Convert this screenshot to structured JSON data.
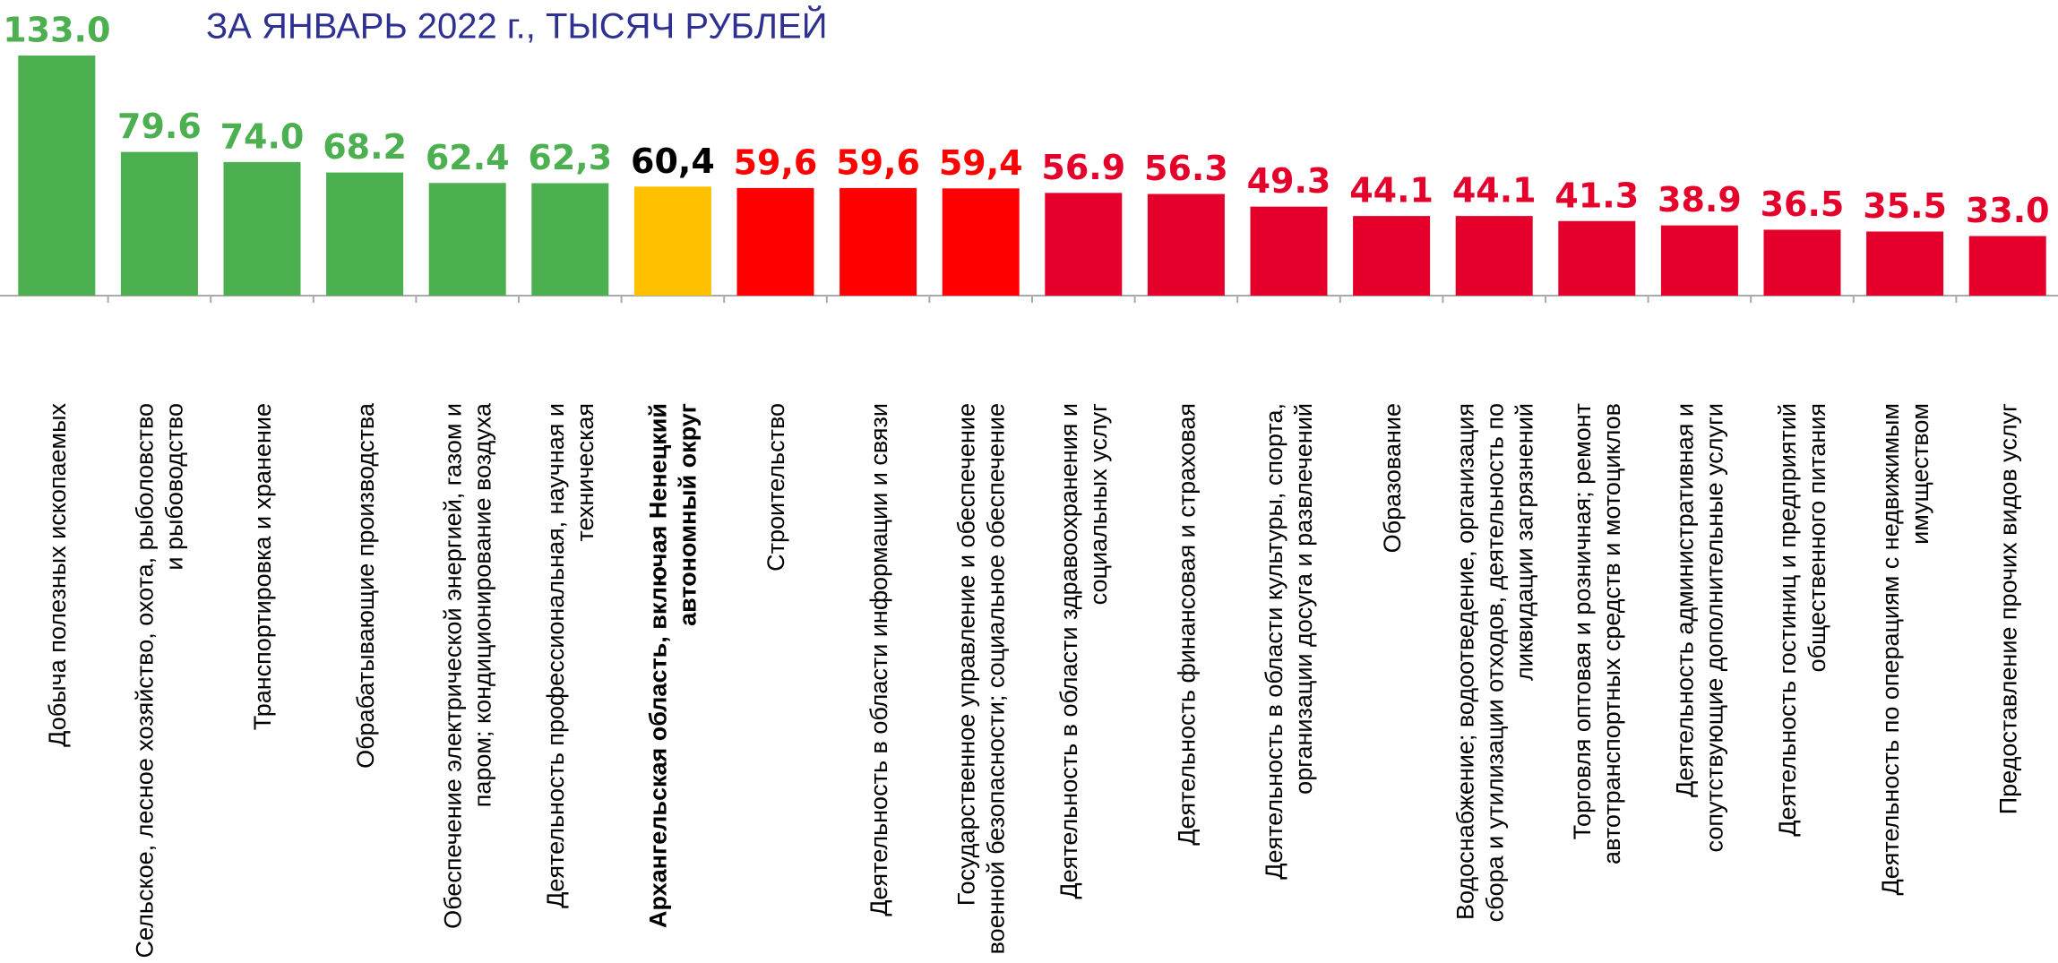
{
  "chart_data": {
    "type": "bar",
    "title": "ЗА ЯНВАРЬ 2022 г., ТЫСЯЧ РУБЛЕЙ",
    "categories": [
      "Добыча полезных ископаемых",
      "Сельское, лесное хозяйство, охота, рыболовство и рыбоводство",
      "Транспортировка и хранение",
      "Обрабатывающие производства",
      "Обеспечение электрической энергией, газом и паром; кондиционирование воздуха",
      "Деятельность профессиональная, научная и техническая",
      "Архангельская область, включая Ненецкий автономный округ",
      "Строительство",
      "Деятельность в области информации и связи",
      "Государственное управление и обеспечение военной безопасности; социальное обеспечение",
      "Деятельность в области здравоохранения и социальных услуг",
      "Деятельность финансовая и страховая",
      "Деятельность в области культуры, спорта, организации досуга и развлечений",
      "Образование",
      "Водоснабжение; водоотведение, организация сбора и утилизации отходов, деятельность по ликвидации загрязнений",
      "Торговля оптовая и розничная; ремонт автотранспортных средств и мотоциклов",
      "Деятельность административная и сопутствующие дополнительные услуги",
      "Деятельность гостиниц и предприятий общественного питания",
      "Деятельность по операциям с недвижимым имуществом",
      "Предоставление прочих видов услуг"
    ],
    "values": [
      133.0,
      79.6,
      74.0,
      68.2,
      62.4,
      62.3,
      60.4,
      59.6,
      59.6,
      59.4,
      56.9,
      56.3,
      49.3,
      44.1,
      44.1,
      41.3,
      38.9,
      36.5,
      35.5,
      33.0
    ],
    "value_labels": [
      "133.0",
      "79.6",
      "74.0",
      "68.2",
      "62.4",
      "62,3",
      "60,4",
      "59,6",
      "59,6",
      "59,4",
      "56.9",
      "56.3",
      "49.3",
      "44.1",
      "44.1",
      "41.3",
      "38.9",
      "36.5",
      "35.5",
      "33.0"
    ],
    "colors": [
      "#4caf50",
      "#4caf50",
      "#4caf50",
      "#4caf50",
      "#4caf50",
      "#4caf50",
      "#ffc000",
      "#ff0000",
      "#ff0000",
      "#ff0000",
      "#e4002b",
      "#e4002b",
      "#e4002b",
      "#e4002b",
      "#e4002b",
      "#e4002b",
      "#e4002b",
      "#e4002b",
      "#e4002b",
      "#e4002b"
    ],
    "label_colors": [
      "#4caf50",
      "#4caf50",
      "#4caf50",
      "#4caf50",
      "#4caf50",
      "#4caf50",
      "#000000",
      "#ff0000",
      "#ff0000",
      "#ff0000",
      "#e4002b",
      "#e4002b",
      "#e4002b",
      "#e4002b",
      "#e4002b",
      "#e4002b",
      "#e4002b",
      "#e4002b",
      "#e4002b",
      "#e4002b"
    ]
  }
}
